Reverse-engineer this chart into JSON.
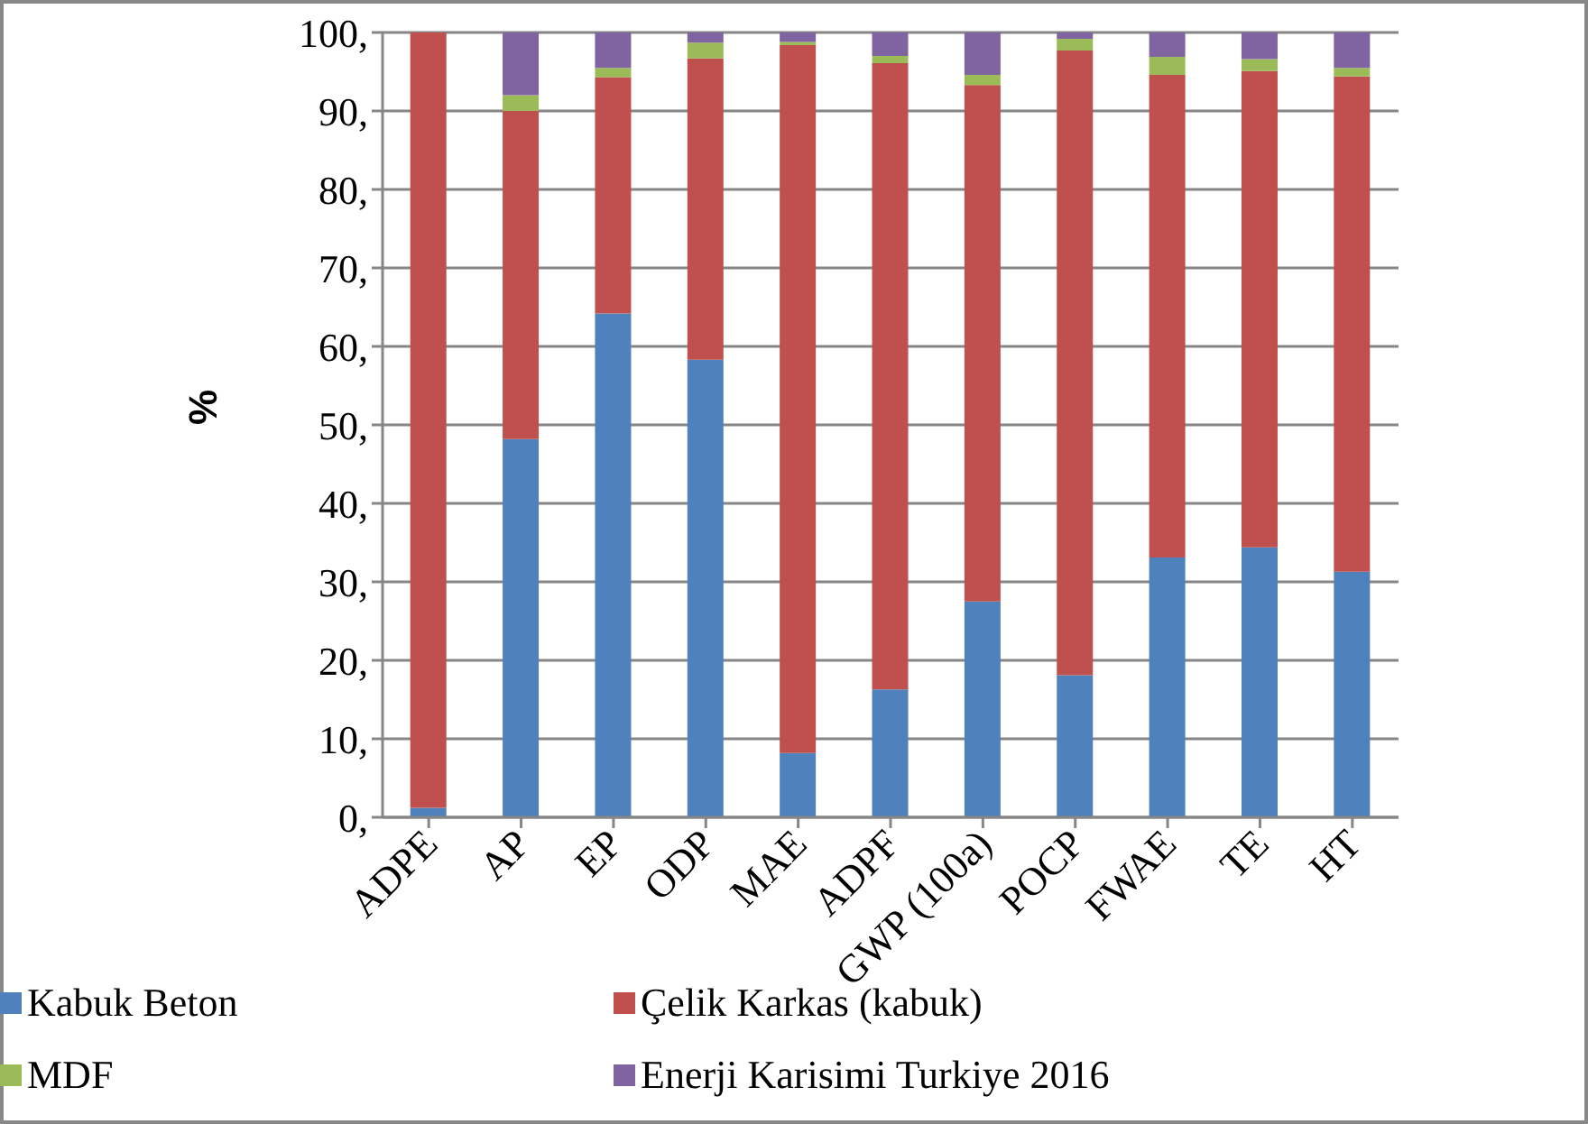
{
  "chart_data": {
    "type": "bar",
    "stacked": true,
    "ylabel": "%",
    "categories": [
      "ADPE",
      "AP",
      "EP",
      "ODP",
      "MAE",
      "ADPF",
      "GWP (100a)",
      "POCP",
      "FWAE",
      "TE",
      "HT"
    ],
    "series": [
      {
        "name": "Kabuk Beton",
        "color": "#4f81bd",
        "values": [
          1.2,
          48.2,
          64.2,
          58.3,
          8.2,
          16.3,
          27.5,
          18.1,
          33.1,
          34.4,
          31.3
        ]
      },
      {
        "name": "Çelik Karkas (kabuk)",
        "color": "#c0504d",
        "values": [
          98.8,
          41.8,
          30.1,
          38.4,
          90.2,
          79.8,
          65.8,
          79.6,
          61.5,
          60.7,
          63.1
        ]
      },
      {
        "name": "MDF",
        "color": "#9bbb59",
        "values": [
          0,
          2,
          1.2,
          2,
          0.4,
          0.9,
          1.3,
          1.5,
          2.3,
          1.5,
          1.1
        ]
      },
      {
        "name": "Enerji  Karisimi Turkiye  2016",
        "color": "#8064a2",
        "values": [
          0,
          8,
          4.5,
          1.3,
          1.2,
          3,
          5.4,
          0.8,
          3.1,
          3.4,
          4.5
        ]
      }
    ],
    "ylim": [
      0,
      100
    ],
    "yticks": [
      {
        "value": 0,
        "label": "0,"
      },
      {
        "value": 10,
        "label": "10,"
      },
      {
        "value": 20,
        "label": "20,"
      },
      {
        "value": 30,
        "label": "30,"
      },
      {
        "value": 40,
        "label": "40,"
      },
      {
        "value": 50,
        "label": "50,"
      },
      {
        "value": 60,
        "label": "60,"
      },
      {
        "value": 70,
        "label": "70,"
      },
      {
        "value": 80,
        "label": "80,"
      },
      {
        "value": 90,
        "label": "90,"
      },
      {
        "value": 100,
        "label": "100,"
      }
    ],
    "grid": "y",
    "legend": "bottom"
  }
}
